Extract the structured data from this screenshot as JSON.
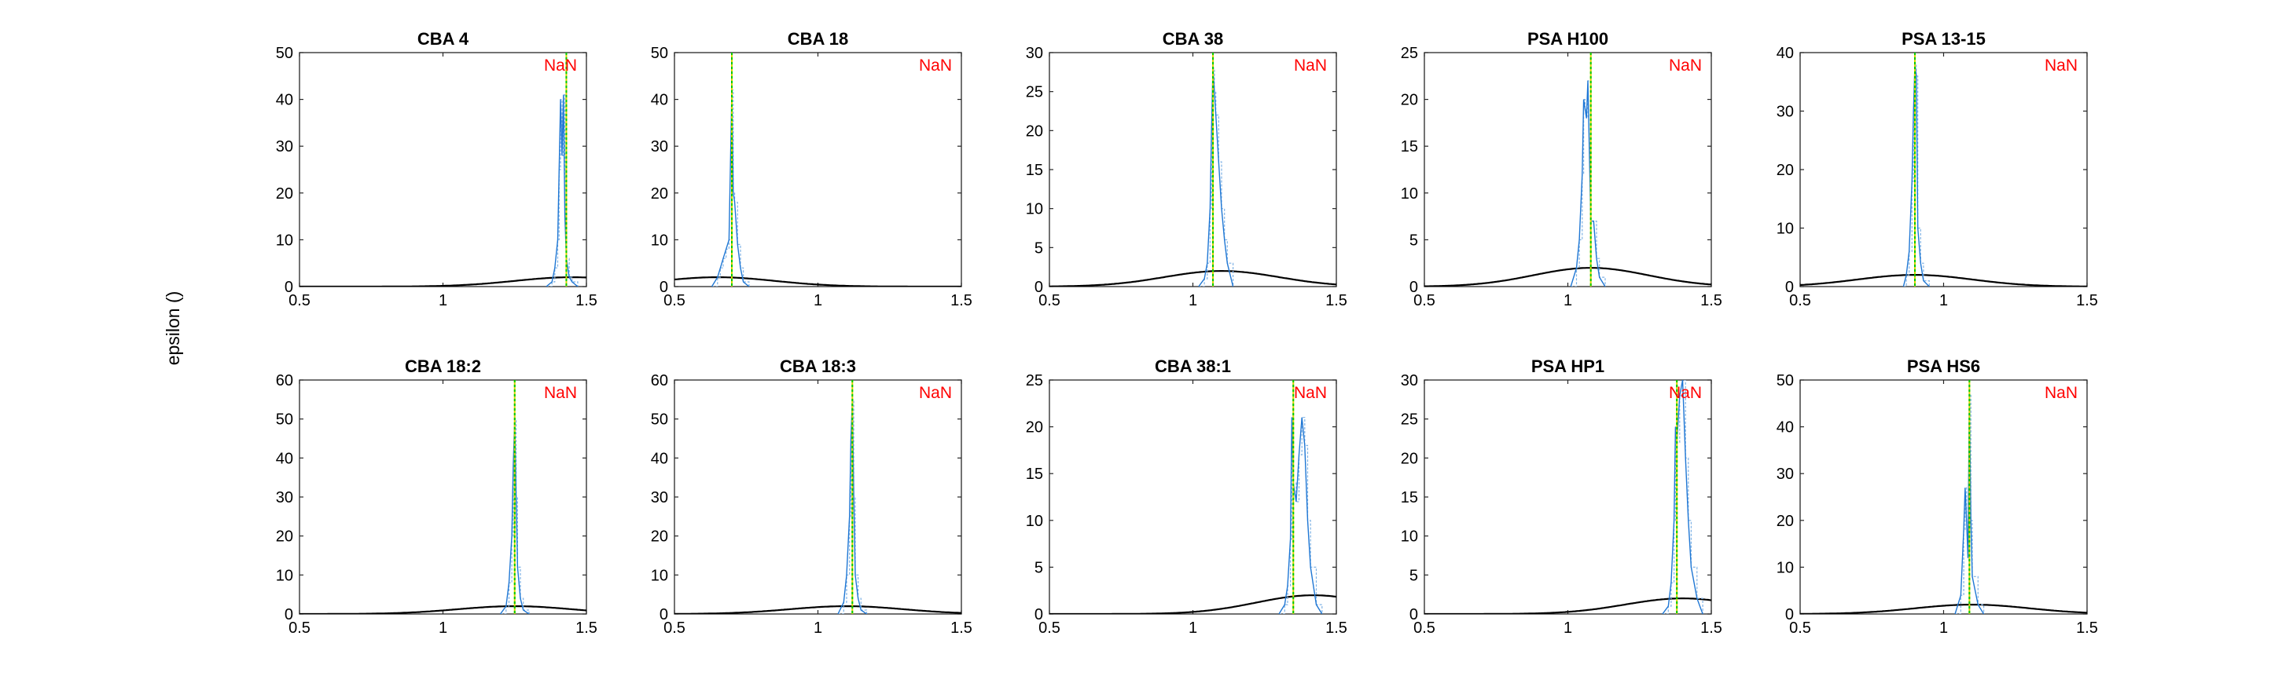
{
  "figure": {
    "ylabel": "epsilon ()",
    "colors": {
      "histogram": "#1f77d4",
      "histogram_light": "#7fb2e5",
      "prior_curve": "#000000",
      "marker_green": "#00c800",
      "marker_yellow": "#d4d400",
      "annotation": "#ff0000"
    }
  },
  "chart_data": [
    {
      "type": "line",
      "title": "CBA 4",
      "annotation": "NaN",
      "xlim": [
        0.5,
        1.5
      ],
      "xticks": [
        0.5,
        1,
        1.5
      ],
      "ylim": [
        0,
        50
      ],
      "yticks": [
        0,
        10,
        20,
        30,
        40,
        50
      ],
      "marker_x": 1.43,
      "prior": {
        "mean": 1.45,
        "sd": 0.2,
        "peak": 2
      },
      "hist": {
        "x": [
          1.36,
          1.38,
          1.39,
          1.4,
          1.405,
          1.41,
          1.415,
          1.42,
          1.425,
          1.43,
          1.44,
          1.45,
          1.47
        ],
        "y": [
          0,
          1,
          4,
          10,
          25,
          40,
          28,
          41,
          15,
          6,
          2,
          1,
          0
        ]
      }
    },
    {
      "type": "line",
      "title": "CBA 18",
      "annotation": "NaN",
      "xlim": [
        0.5,
        1.5
      ],
      "xticks": [
        0.5,
        1,
        1.5
      ],
      "ylim": [
        0,
        50
      ],
      "yticks": [
        0,
        10,
        20,
        30,
        40,
        50
      ],
      "marker_x": 0.7,
      "prior": {
        "mean": 0.65,
        "sd": 0.2,
        "peak": 2
      },
      "hist": {
        "x": [
          0.63,
          0.65,
          0.66,
          0.67,
          0.68,
          0.69,
          0.7,
          0.705,
          0.71,
          0.72,
          0.73,
          0.74,
          0.76
        ],
        "y": [
          0,
          2,
          4,
          6,
          8,
          10,
          42,
          20,
          18,
          9,
          4,
          1,
          0
        ]
      }
    },
    {
      "type": "line",
      "title": "CBA 38",
      "annotation": "NaN",
      "xlim": [
        0.5,
        1.5
      ],
      "xticks": [
        0.5,
        1,
        1.5
      ],
      "ylim": [
        0,
        30
      ],
      "yticks": [
        0,
        5,
        10,
        15,
        20,
        25,
        30
      ],
      "marker_x": 1.07,
      "prior": {
        "mean": 1.1,
        "sd": 0.2,
        "peak": 2
      },
      "hist": {
        "x": [
          1.02,
          1.04,
          1.05,
          1.06,
          1.065,
          1.07,
          1.075,
          1.08,
          1.09,
          1.1,
          1.11,
          1.12,
          1.14
        ],
        "y": [
          0,
          1,
          3,
          10,
          20,
          28,
          25,
          22,
          16,
          10,
          6,
          3,
          0
        ]
      }
    },
    {
      "type": "line",
      "title": "PSA H100",
      "annotation": "NaN",
      "xlim": [
        0.5,
        1.5
      ],
      "xticks": [
        0.5,
        1,
        1.5
      ],
      "ylim": [
        0,
        25
      ],
      "yticks": [
        0,
        5,
        10,
        15,
        20,
        25
      ],
      "marker_x": 1.08,
      "prior": {
        "mean": 1.08,
        "sd": 0.2,
        "peak": 2
      },
      "hist": {
        "x": [
          1.01,
          1.03,
          1.04,
          1.05,
          1.055,
          1.06,
          1.065,
          1.07,
          1.08,
          1.09,
          1.1,
          1.11,
          1.13
        ],
        "y": [
          0,
          2,
          5,
          12,
          20,
          19,
          18,
          22,
          7,
          7,
          3,
          1,
          0
        ]
      }
    },
    {
      "type": "line",
      "title": "PSA 13-15",
      "annotation": "NaN",
      "xlim": [
        0.5,
        1.5
      ],
      "xticks": [
        0.5,
        1,
        1.5
      ],
      "ylim": [
        0,
        40
      ],
      "yticks": [
        0,
        10,
        20,
        30,
        40
      ],
      "marker_x": 0.9,
      "prior": {
        "mean": 0.9,
        "sd": 0.2,
        "peak": 2
      },
      "hist": {
        "x": [
          0.86,
          0.87,
          0.88,
          0.89,
          0.895,
          0.9,
          0.905,
          0.91,
          0.92,
          0.93,
          0.95
        ],
        "y": [
          0,
          2,
          6,
          18,
          30,
          38,
          36,
          10,
          4,
          1,
          0
        ]
      }
    },
    {
      "type": "line",
      "title": "CBA 18:2",
      "annotation": "NaN",
      "xlim": [
        0.5,
        1.5
      ],
      "xticks": [
        0.5,
        1,
        1.5
      ],
      "ylim": [
        0,
        60
      ],
      "yticks": [
        0,
        10,
        20,
        30,
        40,
        50,
        60
      ],
      "marker_x": 1.25,
      "prior": {
        "mean": 1.25,
        "sd": 0.2,
        "peak": 2
      },
      "hist": {
        "x": [
          1.2,
          1.22,
          1.23,
          1.24,
          1.245,
          1.25,
          1.255,
          1.26,
          1.27,
          1.28,
          1.3
        ],
        "y": [
          0,
          2,
          8,
          20,
          38,
          50,
          30,
          12,
          4,
          1,
          0
        ]
      }
    },
    {
      "type": "line",
      "title": "CBA 18:3",
      "annotation": "NaN",
      "xlim": [
        0.5,
        1.5
      ],
      "xticks": [
        0.5,
        1,
        1.5
      ],
      "ylim": [
        0,
        60
      ],
      "yticks": [
        0,
        10,
        20,
        30,
        40,
        50,
        60
      ],
      "marker_x": 1.12,
      "prior": {
        "mean": 1.1,
        "sd": 0.2,
        "peak": 2
      },
      "hist": {
        "x": [
          1.07,
          1.09,
          1.1,
          1.11,
          1.115,
          1.12,
          1.125,
          1.13,
          1.14,
          1.15,
          1.17
        ],
        "y": [
          0,
          3,
          10,
          25,
          45,
          55,
          30,
          10,
          4,
          1,
          0
        ]
      }
    },
    {
      "type": "line",
      "title": "CBA 38:1",
      "annotation": "NaN",
      "xlim": [
        0.5,
        1.5
      ],
      "xticks": [
        0.5,
        1,
        1.5
      ],
      "ylim": [
        0,
        25
      ],
      "yticks": [
        0,
        5,
        10,
        15,
        20,
        25
      ],
      "marker_x": 1.35,
      "prior": {
        "mean": 1.42,
        "sd": 0.2,
        "peak": 2
      },
      "hist": {
        "x": [
          1.3,
          1.32,
          1.33,
          1.34,
          1.345,
          1.35,
          1.36,
          1.37,
          1.38,
          1.39,
          1.4,
          1.41,
          1.43,
          1.45
        ],
        "y": [
          0,
          1,
          3,
          8,
          21,
          14,
          12,
          17,
          21,
          18,
          10,
          5,
          1,
          0
        ]
      }
    },
    {
      "type": "line",
      "title": "PSA HP1",
      "annotation": "NaN",
      "xlim": [
        0.5,
        1.5
      ],
      "xticks": [
        0.5,
        1,
        1.5
      ],
      "ylim": [
        0,
        30
      ],
      "yticks": [
        0,
        5,
        10,
        15,
        20,
        25,
        30
      ],
      "marker_x": 1.38,
      "prior": {
        "mean": 1.4,
        "sd": 0.2,
        "peak": 2
      },
      "hist": {
        "x": [
          1.33,
          1.35,
          1.36,
          1.37,
          1.375,
          1.38,
          1.39,
          1.4,
          1.41,
          1.42,
          1.43,
          1.45,
          1.47
        ],
        "y": [
          0,
          1,
          4,
          12,
          24,
          22,
          28,
          30,
          20,
          12,
          6,
          2,
          0
        ]
      }
    },
    {
      "type": "line",
      "title": "PSA HS6",
      "annotation": "NaN",
      "xlim": [
        0.5,
        1.5
      ],
      "xticks": [
        0.5,
        1,
        1.5
      ],
      "ylim": [
        0,
        50
      ],
      "yticks": [
        0,
        10,
        20,
        30,
        40,
        50
      ],
      "marker_x": 1.09,
      "prior": {
        "mean": 1.1,
        "sd": 0.2,
        "peak": 2
      },
      "hist": {
        "x": [
          1.04,
          1.06,
          1.07,
          1.075,
          1.08,
          1.085,
          1.09,
          1.095,
          1.1,
          1.12,
          1.14
        ],
        "y": [
          0,
          4,
          18,
          27,
          20,
          12,
          47,
          20,
          8,
          2,
          0
        ]
      }
    }
  ]
}
